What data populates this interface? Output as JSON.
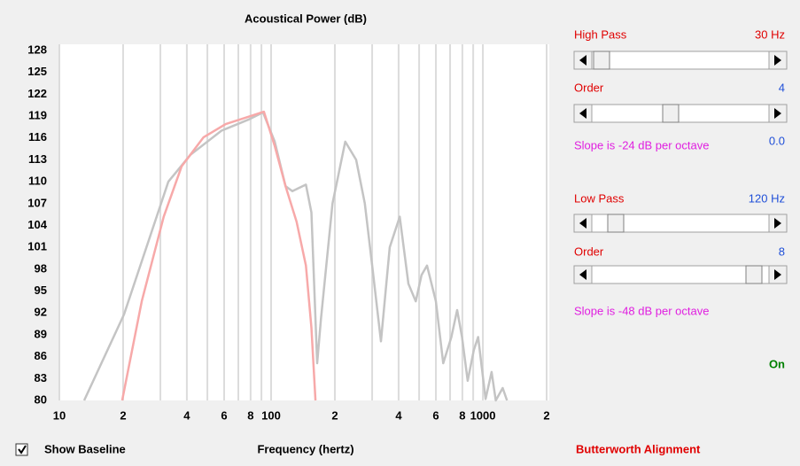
{
  "chart_data": {
    "type": "line",
    "title": "Acoustical Power (dB)",
    "x_label": "Frequency (hertz)",
    "xscale": "log",
    "xlim": [
      10,
      2000
    ],
    "ylim": [
      80,
      128
    ],
    "xticks": [
      10,
      {
        "value": 20,
        "label": "2"
      },
      {
        "value": 40,
        "label": "4"
      },
      {
        "value": 60,
        "label": "6"
      },
      {
        "value": 80,
        "label": "8"
      },
      100,
      {
        "value": 200,
        "label": "2"
      },
      {
        "value": 400,
        "label": "4"
      },
      {
        "value": 600,
        "label": "6"
      },
      {
        "value": 800,
        "label": "8"
      },
      1000,
      {
        "value": 2000,
        "label": "2"
      }
    ],
    "x_minor_ticks": [
      30,
      50,
      70,
      90,
      300,
      500,
      700,
      900
    ],
    "yticks": [
      80,
      83,
      86,
      89,
      92,
      95,
      98,
      101,
      104,
      107,
      110,
      113,
      116,
      119,
      122,
      125,
      128
    ],
    "grid": true,
    "series": [
      {
        "color": "#c4c4c4",
        "x": [
          13.1,
          20.2,
          32.7,
          41.6,
          58.3,
          77.8,
          91.6,
          104,
          117,
          126,
          146,
          155,
          165,
          172,
          195,
          224,
          252,
          277,
          300,
          330,
          363,
          405,
          445,
          482,
          513,
          545,
          600,
          650,
          710,
          756,
          797,
          848,
          906,
          950,
          1030,
          1100,
          1150,
          1240,
          1300
        ],
        "values": [
          80,
          91.8,
          110,
          113.7,
          117,
          118.5,
          119.5,
          115.5,
          109.4,
          108.7,
          109.6,
          105.8,
          85.1,
          91.2,
          107,
          115.5,
          113,
          107,
          98.5,
          88.1,
          101,
          105.2,
          96,
          93.6,
          97.2,
          98.5,
          93.6,
          85.1,
          88.7,
          92.4,
          88.7,
          82.7,
          86.9,
          88.7,
          80.2,
          83.9,
          80,
          81.7,
          80
        ]
      },
      {
        "color": "#f7a9a9",
        "x": [
          19.8,
          24.5,
          31.1,
          37.8,
          48,
          61,
          77.8,
          92.5,
          104,
          117,
          132,
          146,
          155,
          162
        ],
        "values": [
          80,
          93.6,
          105.2,
          112.1,
          116.1,
          117.9,
          118.9,
          119.6,
          114.9,
          109.4,
          104.5,
          98.5,
          90,
          80
        ]
      }
    ]
  },
  "controls": {
    "high_pass": {
      "label": "High Pass",
      "value": "30 Hz"
    },
    "high_pass_order": {
      "label": "Order",
      "value": "4"
    },
    "high_pass_slope": "Slope is -24 dB per octave",
    "gain": "0.0",
    "low_pass": {
      "label": "Low Pass",
      "value": "120 Hz"
    },
    "low_pass_order": {
      "label": "Order",
      "value": "8"
    },
    "low_pass_slope": "Slope is -48 dB per octave",
    "status": "On",
    "alignment": "Butterworth Alignment",
    "baseline_checkbox": "Show Baseline"
  }
}
